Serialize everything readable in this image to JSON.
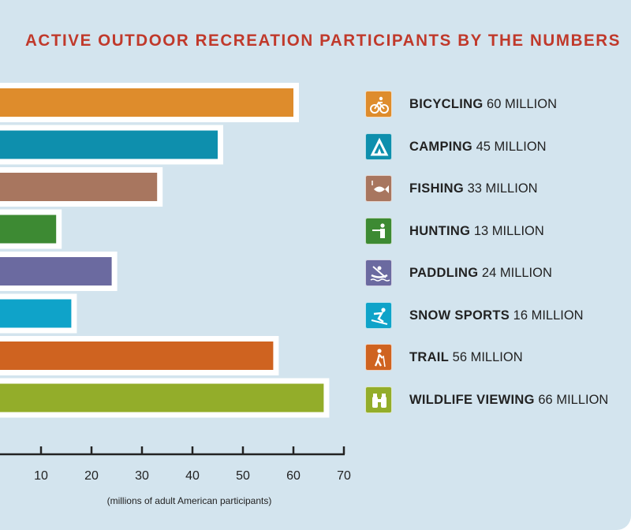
{
  "title": "ACTIVE OUTDOOR RECREATION PARTICIPANTS BY THE NUMBERS",
  "colors": {
    "panel_bg": "#d3e4ee",
    "title": "#c0392b",
    "axis": "#222222",
    "bar_outline": "#ffffff"
  },
  "chart_data": {
    "type": "bar",
    "orientation": "horizontal",
    "title": "ACTIVE OUTDOOR RECREATION PARTICIPANTS BY THE NUMBERS",
    "xlabel": "(millions of adult American participants)",
    "ylabel": "",
    "xlim": [
      0,
      70
    ],
    "x_ticks": [
      10,
      20,
      30,
      40,
      50,
      60,
      70
    ],
    "grid": false,
    "legend_position": "right",
    "unit_label": "MILLION",
    "categories": [
      "BICYCLING",
      "CAMPING",
      "FISHING",
      "HUNTING",
      "PADDLING",
      "SNOW SPORTS",
      "TRAIL",
      "WILDLIFE VIEWING"
    ],
    "values": [
      60,
      45,
      33,
      13,
      24,
      16,
      56,
      66
    ],
    "bar_colors": [
      "#de8c2c",
      "#0e8fad",
      "#a8765f",
      "#3d8a33",
      "#6b6aa0",
      "#0fa3c9",
      "#cf6320",
      "#93ad2a"
    ],
    "icons": [
      "bicycle-icon",
      "tent-icon",
      "fish-icon",
      "hunter-icon",
      "kayak-icon",
      "skier-icon",
      "hiker-icon",
      "binoculars-icon"
    ]
  }
}
